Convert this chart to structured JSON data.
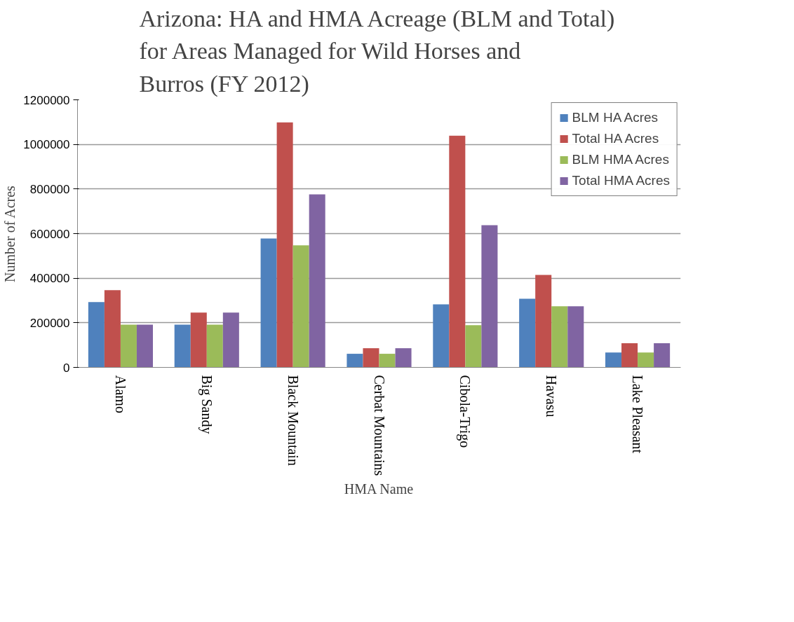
{
  "chart_data": {
    "type": "bar",
    "title": "Arizona: HA and HMA Acreage (BLM and Total) for Areas Managed for Wild Horses and Burros (FY 2012)",
    "xlabel": "HMA Name",
    "ylabel": "Number of Acres",
    "categories": [
      "Alamo",
      "Big Sandy",
      "Black Mountain",
      "Cerbat Mountains",
      "Cibola-Trigo",
      "Havasu",
      "Lake Pleasant"
    ],
    "series": [
      {
        "name": "BLM HA Acres",
        "color": "#4f81bd",
        "values": [
          293000,
          192000,
          578000,
          61000,
          283000,
          308000,
          67000
        ]
      },
      {
        "name": "Total HA Acres",
        "color": "#c0504d",
        "values": [
          346000,
          246000,
          1099000,
          86000,
          1039000,
          415000,
          108000
        ]
      },
      {
        "name": "BLM HMA Acres",
        "color": "#9bbb59",
        "values": [
          192000,
          192000,
          547000,
          61000,
          189000,
          274000,
          67000
        ]
      },
      {
        "name": "Total HMA Acres",
        "color": "#8064a2",
        "values": [
          192000,
          246000,
          776000,
          86000,
          638000,
          274000,
          108000
        ]
      }
    ],
    "ylim": [
      0,
      1200000
    ],
    "yticks": [
      0,
      200000,
      400000,
      600000,
      800000,
      1000000,
      1200000
    ],
    "grid": "y",
    "legend": "top right"
  }
}
